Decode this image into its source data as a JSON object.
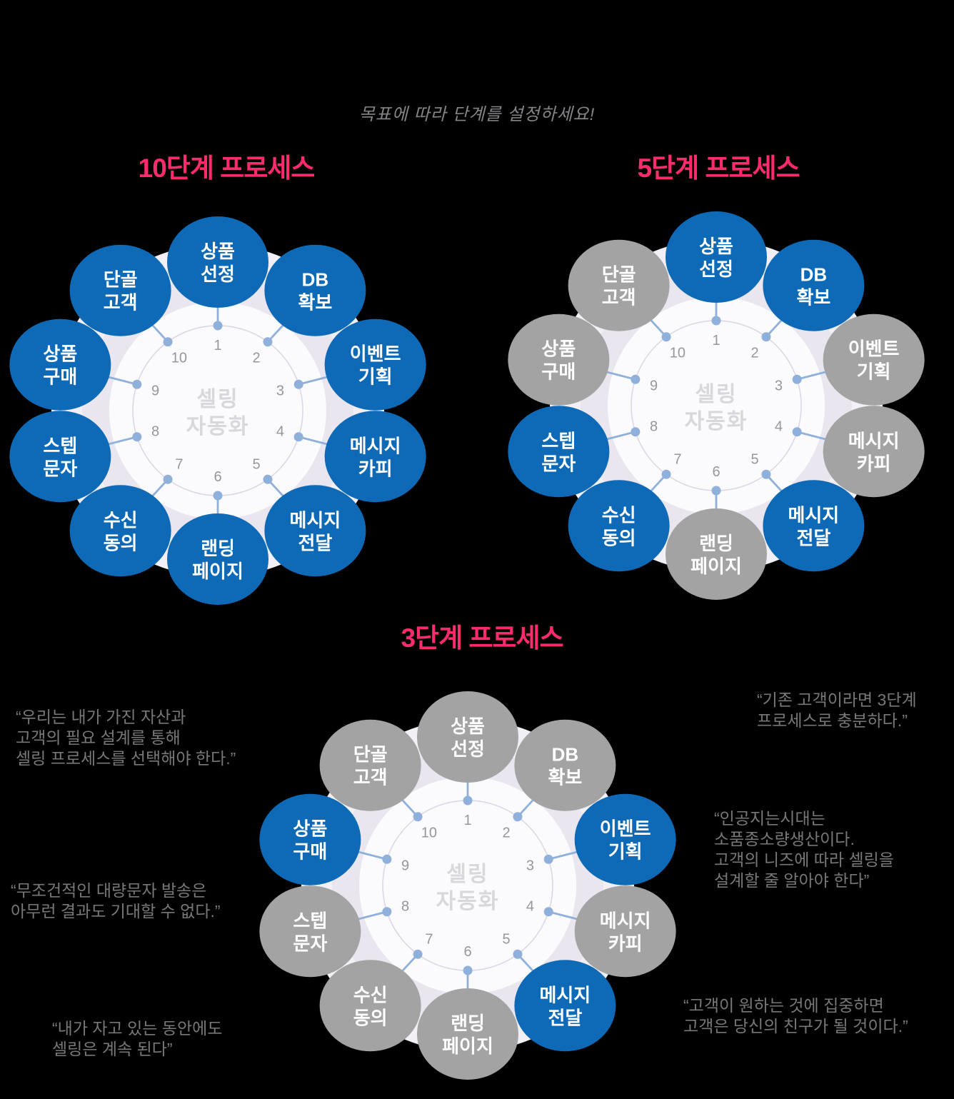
{
  "subtitle": "목표에 따라 단계를 설정하세요!",
  "center_label": [
    "셀링",
    "자동화"
  ],
  "colors": {
    "background": "#000000",
    "title_pink": "#fc2c6c",
    "active_blue": "#0e6ab7",
    "inactive_gray": "#a3a3a3",
    "outer_blob": "#f2f0f6",
    "ring": "#e9e6f0",
    "inner_circle": "#fbfafd",
    "tick_circle_stroke": "#dcd5e3",
    "connector": "#8fb0db",
    "number_gray": "#97969b",
    "center_text": "#d8d7dc",
    "quote_gray": "#787878",
    "subtitle_gray": "#85858a"
  },
  "steps": [
    {
      "num": "1",
      "label": [
        "상품",
        "선정"
      ]
    },
    {
      "num": "2",
      "label": [
        "DB",
        "확보"
      ]
    },
    {
      "num": "3",
      "label": [
        "이벤트",
        "기획"
      ]
    },
    {
      "num": "4",
      "label": [
        "메시지",
        "카피"
      ]
    },
    {
      "num": "5",
      "label": [
        "메시지",
        "전달"
      ]
    },
    {
      "num": "6",
      "label": [
        "랜딩",
        "페이지"
      ]
    },
    {
      "num": "7",
      "label": [
        "수신",
        "동의"
      ]
    },
    {
      "num": "8",
      "label": [
        "스텝",
        "문자"
      ]
    },
    {
      "num": "9",
      "label": [
        "상품",
        "구매"
      ]
    },
    {
      "num": "10",
      "label": [
        "단골",
        "고객"
      ]
    }
  ],
  "diagrams": [
    {
      "id": "process-10",
      "title": "10단계 프로세스",
      "active_steps": [
        "1",
        "2",
        "3",
        "4",
        "5",
        "6",
        "7",
        "8",
        "9",
        "10"
      ]
    },
    {
      "id": "process-5",
      "title": "5단계 프로세스",
      "active_steps": [
        "1",
        "2",
        "5",
        "7",
        "8"
      ]
    },
    {
      "id": "process-3",
      "title": "3단계 프로세스",
      "active_steps": [
        "3",
        "5",
        "9"
      ]
    }
  ],
  "quotes": [
    {
      "id": "quote-assets",
      "lines": [
        "“우리는 내가 가진 자산과",
        "고객의 필요 설계를 통해",
        "셀링 프로세스를 선택해야 한다.”"
      ]
    },
    {
      "id": "quote-bulk-sms",
      "lines": [
        "“무조건적인 대량문자 발송은",
        "아무런 결과도 기대할 수 없다.”"
      ]
    },
    {
      "id": "quote-sleep",
      "lines": [
        "“내가 자고 있는 동안에도",
        "셀링은 계속 된다”"
      ]
    },
    {
      "id": "quote-existing",
      "lines": [
        "“기존 고객이라면 3단계",
        "프로세스로 충분하다.”"
      ]
    },
    {
      "id": "quote-ai-era",
      "lines": [
        "“인공지는시대는",
        "소품종소량생산이다.",
        "고객의 니즈에 따라 셀링을",
        "설계할 줄 알아야 한다”"
      ]
    },
    {
      "id": "quote-friend",
      "lines": [
        "“고객이 원하는 것에 집중하면",
        "고객은 당신의 친구가 될 것이다.”"
      ]
    }
  ]
}
